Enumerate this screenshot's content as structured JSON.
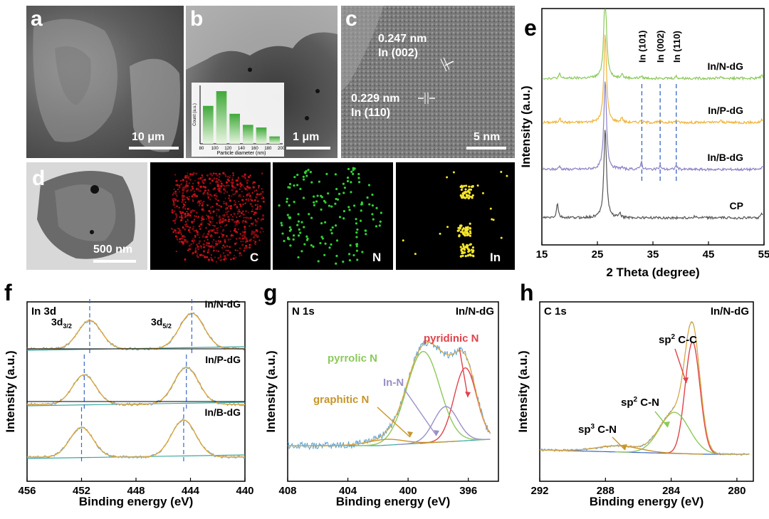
{
  "panels": {
    "a": {
      "label": "a",
      "scalebar": "10 μm"
    },
    "b": {
      "label": "b",
      "scalebar": "1 μm",
      "hist": {
        "ylabel": "Count (a.u.)",
        "xlabel": "Particle diameter (nm)",
        "ticks": [
          "80",
          "100",
          "120",
          "140",
          "160",
          "180",
          "200"
        ],
        "values": [
          0.72,
          1.0,
          0.57,
          0.36,
          0.31,
          0.14
        ]
      }
    },
    "c": {
      "label": "c",
      "scalebar": "5 nm",
      "ann1_line1": "0.247 nm",
      "ann1_line2": "In (002)",
      "ann2_line1": "0.229 nm",
      "ann2_line2": "In (110)"
    },
    "d": {
      "label": "d",
      "scalebar": "500 nm",
      "maps": [
        "C",
        "N",
        "In"
      ]
    }
  },
  "chart_data": [
    {
      "id": "e",
      "type": "line",
      "panel_label": "e",
      "xlabel": "2 Theta (degree)",
      "ylabel": "Intensity (a.u.)",
      "xlim": [
        15,
        55
      ],
      "xticks": [
        15,
        25,
        35,
        45,
        55
      ],
      "ref_lines": [
        {
          "x": 33.0,
          "label": "In (101)"
        },
        {
          "x": 36.3,
          "label": "In (002)"
        },
        {
          "x": 39.2,
          "label": "In (110)"
        }
      ],
      "series": [
        {
          "name": "In/N-dG",
          "color": "#8cc95a",
          "peaks": [
            [
              18.2,
              0.4
            ],
            [
              26.4,
              9
            ],
            [
              29.4,
              0.5
            ],
            [
              32.9,
              0.2
            ],
            [
              36.3,
              0.15
            ],
            [
              39.2,
              0.2
            ],
            [
              47.2,
              0.2
            ],
            [
              54.6,
              0.35
            ]
          ]
        },
        {
          "name": "In/P-dG",
          "color": "#f0b43c",
          "peaks": [
            [
              18.2,
              0.45
            ],
            [
              26.4,
              9
            ],
            [
              29.4,
              0.5
            ],
            [
              32.9,
              0.2
            ],
            [
              36.3,
              0.15
            ],
            [
              39.2,
              0.25
            ],
            [
              47.2,
              0.2
            ],
            [
              54.6,
              0.3
            ]
          ]
        },
        {
          "name": "In/B-dG",
          "color": "#8a82c6",
          "peaks": [
            [
              18.2,
              0.35
            ],
            [
              26.4,
              9
            ],
            [
              29.4,
              0.2
            ],
            [
              32.9,
              0.8
            ],
            [
              36.3,
              0.4
            ],
            [
              39.2,
              0.45
            ],
            [
              54.6,
              0.3
            ]
          ]
        },
        {
          "name": "CP",
          "color": "#555555",
          "peaks": [
            [
              17.8,
              1.5
            ],
            [
              26.4,
              9
            ],
            [
              29.0,
              0.5
            ],
            [
              42.5,
              0.2
            ],
            [
              54.6,
              0.5
            ]
          ]
        }
      ]
    },
    {
      "id": "f",
      "type": "line",
      "panel_label": "f",
      "xlabel": "Binding energy (eV)",
      "ylabel": "Intensity (a.u.)",
      "xlim": [
        456,
        440
      ],
      "xticks": [
        456,
        452,
        448,
        444,
        440
      ],
      "corner_label": "In 3d",
      "peak_labels": [
        {
          "base": "3d",
          "sub": "3/2",
          "x": 451.6
        },
        {
          "base": "3d",
          "sub": "5/2",
          "x": 444.0
        }
      ],
      "series": [
        {
          "name": "In/N-dG",
          "peaks": [
            451.4,
            443.9
          ],
          "dash_x": [
            451.4,
            443.9
          ]
        },
        {
          "name": "In/P-dG",
          "peaks": [
            451.8,
            444.3
          ],
          "dash_x": [
            451.8,
            444.3
          ]
        },
        {
          "name": "In/B-dG",
          "peaks": [
            452.0,
            444.5
          ],
          "dash_x": [
            452.0,
            444.5
          ]
        }
      ]
    },
    {
      "id": "g",
      "type": "line",
      "panel_label": "g",
      "xlabel": "Binding energy (eV)",
      "ylabel": "Intensity (a.u.)",
      "xlim": [
        408,
        394
      ],
      "xticks": [
        408,
        404,
        400,
        396
      ],
      "corner_label": "N 1s",
      "sample": "In/N-dG",
      "components": [
        {
          "name": "pyridinic N",
          "color": "#e0434b",
          "center": 396.2,
          "height": 0.62,
          "width": 0.75
        },
        {
          "name": "pyrrolic N",
          "color": "#8cc95a",
          "center": 399.0,
          "height": 0.78,
          "width": 1.1
        },
        {
          "name": "In-N",
          "color": "#9b8fc9",
          "center": 397.5,
          "height": 0.3,
          "width": 0.8
        },
        {
          "name": "graphitic N",
          "color": "#c8952a",
          "center": 401.5,
          "height": 0.05,
          "width": 1.2
        }
      ]
    },
    {
      "id": "h",
      "type": "line",
      "panel_label": "h",
      "xlabel": "Binding energy (eV)",
      "ylabel": "Intensity (a.u.)",
      "xlim": [
        292,
        279
      ],
      "xticks": [
        292,
        288,
        284,
        280
      ],
      "corner_label": "C 1s",
      "sample": "In/N-dG",
      "components": [
        {
          "name": "sp² C-C",
          "base": "sp",
          "sup": "2",
          "rest": " C-C",
          "color": "#e0434b",
          "center": 282.7,
          "height": 0.9,
          "width": 0.45
        },
        {
          "name": "sp² C-N",
          "base": "sp",
          "sup": "2",
          "rest": " C-N",
          "color": "#8cc95a",
          "center": 283.8,
          "height": 0.33,
          "width": 0.9
        },
        {
          "name": "sp³ C-N",
          "base": "sp",
          "sup": "3",
          "rest": " C-N",
          "color": "#c8952a",
          "center": 287.2,
          "height": 0.05,
          "width": 1.3
        }
      ]
    }
  ]
}
